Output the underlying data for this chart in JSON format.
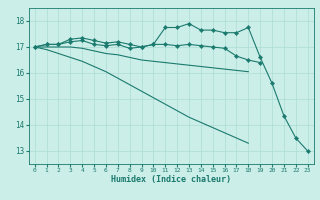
{
  "xlabel": "Humidex (Indice chaleur)",
  "x": [
    0,
    1,
    2,
    3,
    4,
    5,
    6,
    7,
    8,
    9,
    10,
    11,
    12,
    13,
    14,
    15,
    16,
    17,
    18,
    19,
    20,
    21,
    22,
    23
  ],
  "line1": [
    17.0,
    17.1,
    17.1,
    17.3,
    17.35,
    17.25,
    17.15,
    17.2,
    17.1,
    17.0,
    17.1,
    17.75,
    17.75,
    17.9,
    17.65,
    17.65,
    17.55,
    17.55,
    17.75,
    16.6,
    15.6,
    14.35,
    13.5,
    13.0
  ],
  "line2": [
    17.0,
    17.1,
    17.1,
    17.2,
    17.25,
    17.1,
    17.05,
    17.1,
    16.95,
    17.0,
    17.1,
    17.1,
    17.05,
    17.1,
    17.05,
    17.0,
    16.95,
    16.65,
    16.5,
    16.4,
    null,
    null,
    null,
    null
  ],
  "line3": [
    17.0,
    17.0,
    17.0,
    17.0,
    16.95,
    16.85,
    16.75,
    16.7,
    16.6,
    16.5,
    16.45,
    16.4,
    16.35,
    16.3,
    16.25,
    16.2,
    16.15,
    16.1,
    16.05,
    null,
    null,
    null,
    null,
    null
  ],
  "line4": [
    17.0,
    16.9,
    16.75,
    16.6,
    16.45,
    16.25,
    16.05,
    15.8,
    15.55,
    15.3,
    15.05,
    14.8,
    14.55,
    14.3,
    14.1,
    13.9,
    13.7,
    13.5,
    13.3,
    null,
    null,
    null,
    null,
    null
  ],
  "line_color": "#1a7a6e",
  "bg_color": "#cceee8",
  "grid_color": "#aaddd5",
  "ylim": [
    12.5,
    18.5
  ],
  "yticks": [
    13,
    14,
    15,
    16,
    17,
    18
  ],
  "xticks": [
    0,
    1,
    2,
    3,
    4,
    5,
    6,
    7,
    8,
    9,
    10,
    11,
    12,
    13,
    14,
    15,
    16,
    17,
    18,
    19,
    20,
    21,
    22,
    23
  ],
  "marker": "D",
  "markersize": 2.2,
  "linewidth": 0.8
}
